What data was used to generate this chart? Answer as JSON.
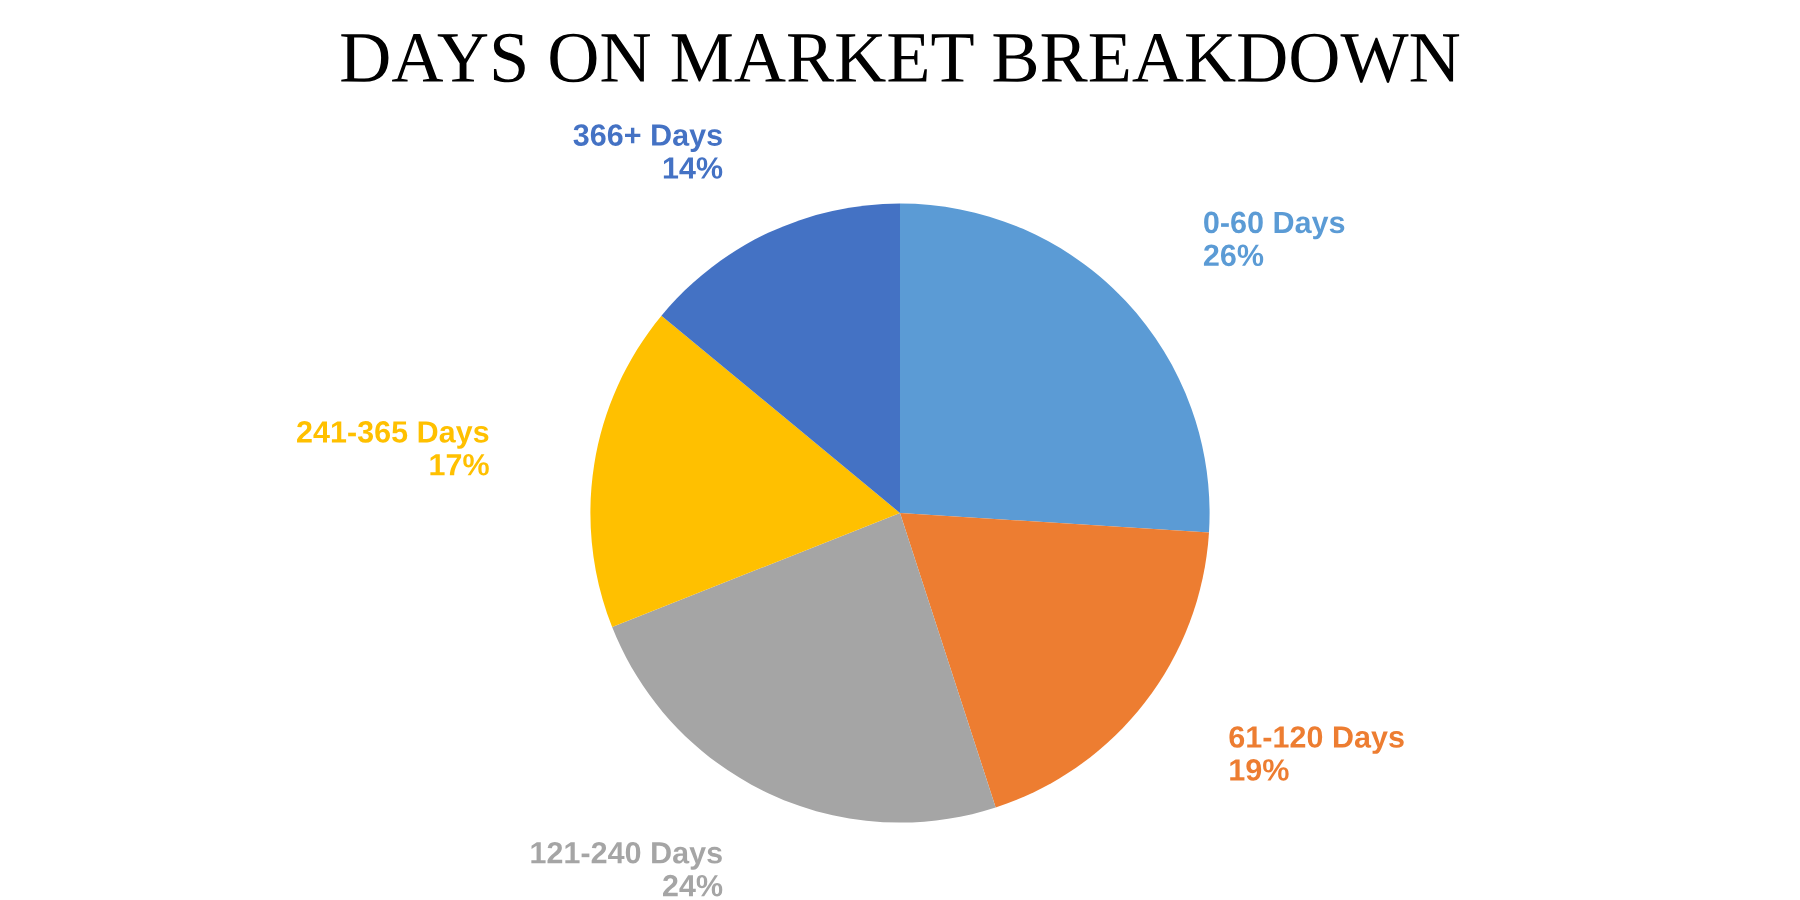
{
  "chart_data": {
    "type": "pie",
    "title": "DAYS ON MARKET BREAKDOWN",
    "categories": [
      "0-60 Days",
      "61-120 Days",
      "121-240 Days",
      "241-365 Days",
      "366+ Days"
    ],
    "values": [
      26,
      19,
      24,
      17,
      14
    ],
    "value_labels": [
      "26%",
      "19%",
      "24%",
      "17%",
      "14%"
    ],
    "colors": [
      "#5b9bd5",
      "#ed7d31",
      "#a5a5a5",
      "#ffc000",
      "#4472c4"
    ],
    "legend": false
  }
}
